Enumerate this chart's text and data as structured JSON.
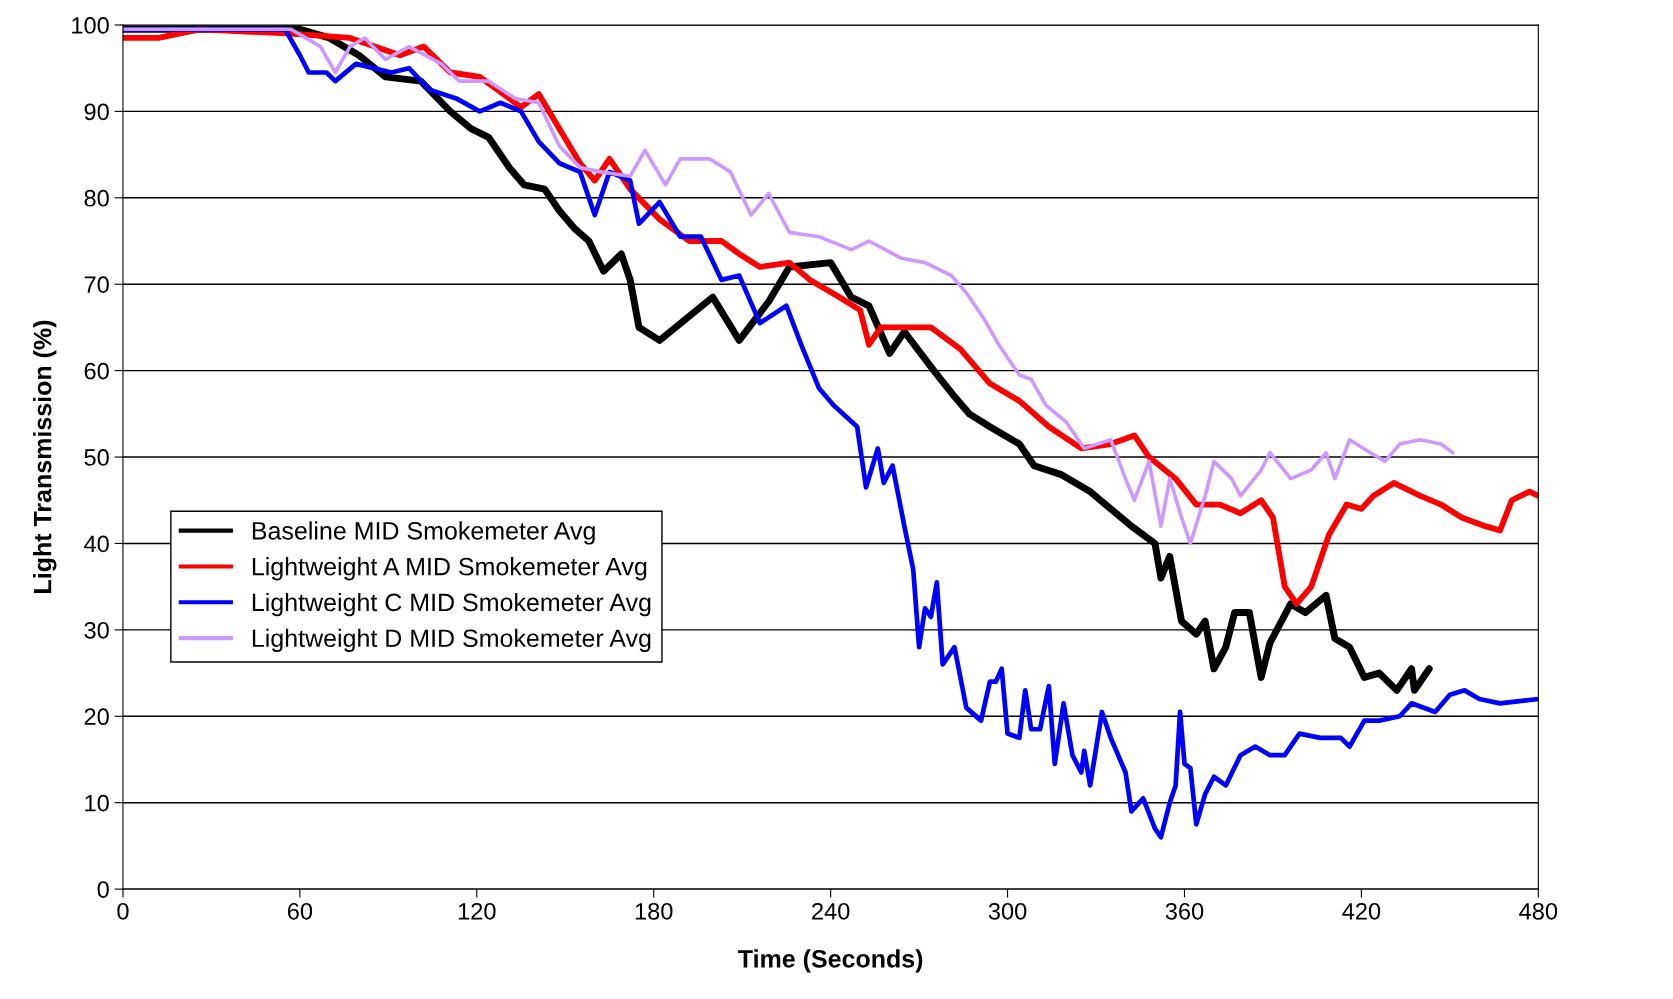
{
  "chart_data": {
    "type": "line",
    "xlabel": "Time (Seconds)",
    "ylabel": "Light Transmission (%)",
    "xlim": [
      0,
      480
    ],
    "xticks": [
      0,
      60,
      120,
      180,
      240,
      300,
      360,
      420,
      480
    ],
    "ylim": [
      0,
      100
    ],
    "yticks": [
      0,
      10,
      20,
      30,
      40,
      50,
      60,
      70,
      80,
      90,
      100
    ],
    "grid": "y",
    "legend": "left",
    "marker": "none",
    "line_style": "solid",
    "series": [
      {
        "name": "Baseline MID Smokemeter Avg",
        "color": "#000000",
        "x": [
          0,
          30,
          60,
          70,
          80,
          89,
          101,
          111,
          118,
          124,
          131,
          136,
          143,
          148,
          153,
          158,
          163,
          169,
          172,
          175,
          182,
          200,
          209,
          219,
          226,
          240,
          247,
          253,
          260,
          265,
          275,
          282,
          287,
          294,
          304,
          309,
          318,
          328,
          335,
          342,
          350,
          352,
          355,
          359,
          364,
          367,
          370,
          374,
          377,
          382,
          386,
          389,
          396,
          401,
          408,
          411,
          416,
          421,
          426,
          432,
          437,
          438,
          443
        ],
        "values": [
          99.5,
          99.5,
          99.5,
          98.5,
          96.5,
          94,
          93.5,
          90,
          88,
          87,
          83.5,
          81.5,
          81,
          78.5,
          76.5,
          75,
          71.5,
          73.5,
          70.5,
          65,
          63.5,
          68.5,
          63.5,
          68,
          72,
          72.5,
          68.5,
          67.5,
          62,
          64.5,
          60,
          57,
          55,
          53.5,
          51.5,
          49,
          48,
          46,
          44,
          42,
          40,
          36,
          38.5,
          31,
          29.5,
          31,
          25.5,
          28,
          32,
          32,
          24.5,
          28.5,
          33,
          32,
          34,
          29,
          28,
          24.5,
          25,
          23,
          25.5,
          23,
          25.5
        ]
      },
      {
        "name": "Lightweight A MID Smokemeter Avg",
        "color": "#ff0000",
        "x": [
          0,
          12,
          26,
          57,
          77,
          94,
          102,
          111,
          121,
          135,
          141,
          148,
          155,
          160,
          165,
          172,
          182,
          192,
          203,
          209,
          216,
          226,
          233,
          243,
          250,
          253,
          257,
          267,
          274,
          284,
          294,
          304,
          314,
          325,
          335,
          343,
          348,
          357,
          364,
          372,
          379,
          386,
          390,
          394,
          398,
          403,
          409,
          415,
          420,
          424,
          431,
          440,
          447,
          454,
          462,
          467,
          471,
          477,
          480
        ],
        "values": [
          98.5,
          98.5,
          99.5,
          99,
          98.5,
          96.5,
          97.5,
          94.5,
          94,
          90.5,
          92,
          88,
          84,
          82,
          84.5,
          81,
          77.5,
          75,
          75,
          73.5,
          72,
          72.5,
          70.5,
          68.5,
          67,
          63,
          65,
          65,
          65,
          62.5,
          58.5,
          56.5,
          53.5,
          51,
          51.5,
          52.5,
          50,
          47.5,
          44.5,
          44.5,
          43.5,
          45,
          43,
          35,
          33,
          35,
          41,
          44.5,
          44,
          45.5,
          47,
          45.5,
          44.5,
          43,
          42,
          41.5,
          45,
          46,
          45.5
        ]
      },
      {
        "name": "Lightweight C MID Smokemeter Avg",
        "color": "#0000ff",
        "x": [
          0,
          55,
          60,
          63,
          69,
          72,
          79,
          91,
          97,
          104,
          113,
          121,
          128,
          135,
          141,
          148,
          155,
          160,
          165,
          172,
          175,
          182,
          189,
          196,
          203,
          209,
          216,
          225,
          230,
          236,
          241,
          249,
          252,
          256,
          258,
          261,
          265,
          268,
          270,
          272,
          274,
          276,
          278,
          282,
          286,
          291,
          294,
          296,
          298,
          300,
          304,
          306,
          308,
          311,
          314,
          316,
          319,
          322,
          325,
          326,
          328,
          332,
          335,
          340,
          342,
          346,
          350,
          352,
          355,
          357,
          358.5,
          360,
          362,
          364,
          367,
          370,
          374,
          379,
          384,
          389,
          394,
          399,
          406,
          413,
          416,
          421,
          426,
          433,
          437,
          445,
          450,
          455,
          460,
          467,
          480
        ],
        "values": [
          99.5,
          99.5,
          96.5,
          94.5,
          94.5,
          93.5,
          95.5,
          94.5,
          95,
          92.5,
          91.5,
          90,
          91,
          90,
          86.5,
          84,
          83,
          78,
          83,
          82,
          77,
          79.5,
          75.5,
          75.5,
          70.5,
          71,
          65.5,
          67.5,
          63,
          58,
          56,
          53.5,
          46.5,
          51,
          47,
          49,
          42,
          37,
          28,
          32.5,
          31.5,
          35.5,
          26,
          28,
          21,
          19.5,
          24,
          24,
          25.5,
          18,
          17.5,
          23,
          18.5,
          18.5,
          23.5,
          14.5,
          21.5,
          15.5,
          13.5,
          16,
          12,
          20.5,
          17.5,
          13.5,
          9,
          10.5,
          7,
          6,
          10,
          12,
          20.5,
          14.5,
          14,
          7.5,
          11,
          13,
          12,
          15.5,
          16.5,
          15.5,
          15.5,
          18,
          17.5,
          17.5,
          16.5,
          19.5,
          19.5,
          20,
          21.5,
          20.5,
          22.5,
          23,
          22,
          21.5,
          22
        ]
      },
      {
        "name": "Lightweight D MID Smokemeter Avg",
        "color": "#cc99ff",
        "x": [
          0,
          57,
          67,
          72,
          77,
          82,
          89,
          97,
          108,
          114,
          124,
          133,
          141,
          148,
          155,
          162,
          172,
          177,
          184,
          189,
          199,
          206,
          213,
          219,
          226,
          236,
          247,
          253,
          264,
          272,
          281,
          286,
          292,
          297,
          304,
          308,
          313,
          320,
          326,
          335,
          340,
          343,
          348,
          352,
          355,
          359,
          362,
          367,
          370,
          376,
          379,
          386,
          389,
          396,
          403,
          408,
          411,
          416,
          423,
          428,
          433,
          440,
          447,
          451
        ],
        "values": [
          99.5,
          99.5,
          97.5,
          94.5,
          97.5,
          98.5,
          96,
          97.5,
          95.5,
          93.5,
          93.5,
          91.5,
          91,
          86,
          83.5,
          83,
          82.5,
          85.5,
          81.5,
          84.5,
          84.5,
          83,
          78,
          80.5,
          76,
          75.5,
          74,
          75,
          73,
          72.5,
          71,
          69,
          66,
          63,
          59.5,
          59,
          56,
          54,
          51,
          52,
          47.5,
          45,
          49.5,
          42,
          47.5,
          43,
          40,
          45.5,
          49.5,
          47.5,
          45.5,
          48.5,
          50.5,
          47.5,
          48.5,
          50.5,
          47.5,
          52,
          50.5,
          49.5,
          51.5,
          52,
          51.5,
          50.5
        ]
      }
    ]
  }
}
